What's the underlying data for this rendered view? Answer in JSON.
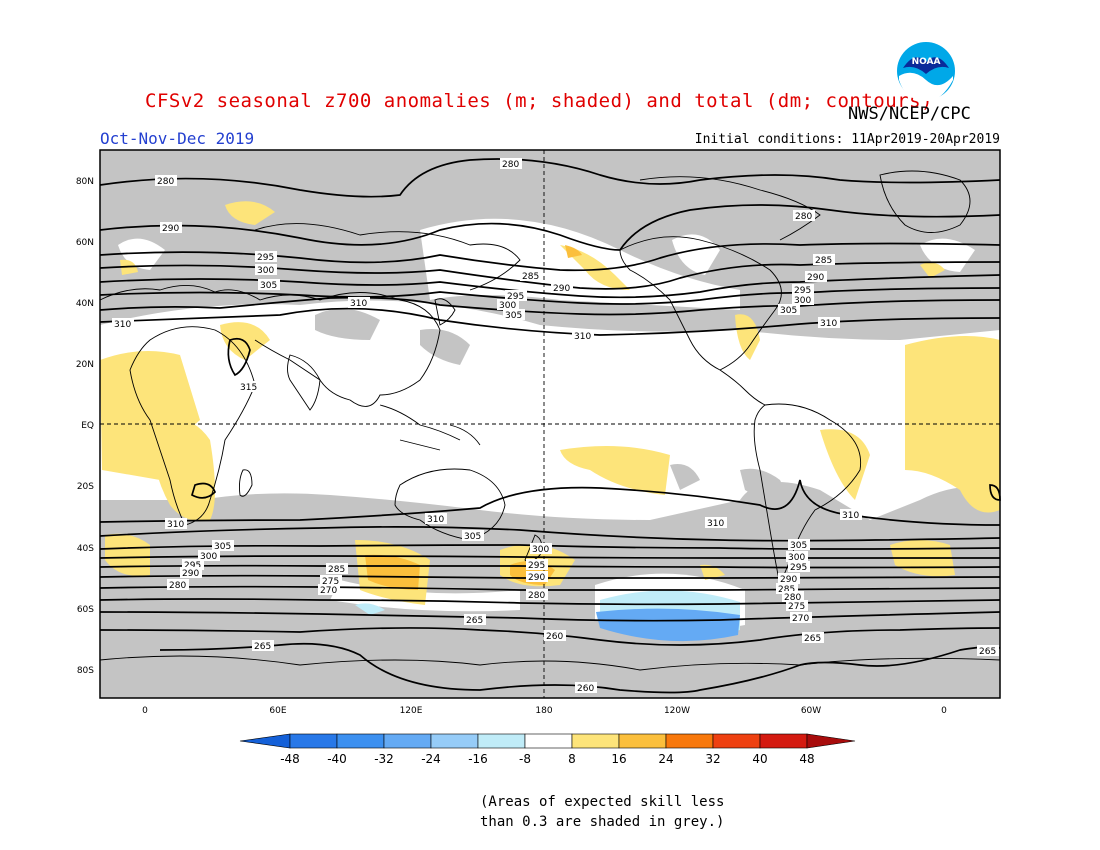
{
  "header": {
    "title": "CFSv2 seasonal z700 anomalies (m; shaded) and total (dm; contours)",
    "agency": "NWS/NCEP/CPC",
    "season": "Oct-Nov-Dec 2019",
    "initial_conditions": "Initial conditions: 11Apr2019-20Apr2019",
    "logo_text": "NOAA"
  },
  "axes": {
    "lat_labels": [
      "80N",
      "60N",
      "40N",
      "20N",
      "EQ",
      "20S",
      "40S",
      "60S",
      "80S"
    ],
    "lon_labels": [
      "0",
      "60E",
      "120E",
      "180",
      "120W",
      "60W",
      "0"
    ]
  },
  "contour_labels": [
    "280",
    "290",
    "295",
    "300",
    "305",
    "310",
    "315",
    "285",
    "275",
    "270",
    "265",
    "260"
  ],
  "colorbar": {
    "labels": [
      "-48",
      "-40",
      "-32",
      "-24",
      "-16",
      "-8",
      "8",
      "16",
      "24",
      "32",
      "40",
      "48"
    ],
    "colors": [
      "#1460d8",
      "#2878e8",
      "#3c90f0",
      "#64aaf4",
      "#96ccf8",
      "#c0ecf8",
      "#ffffff",
      "#fde47a",
      "#fbbf3c",
      "#f8780c",
      "#ee4010",
      "#d41a10",
      "#a80c0c"
    ]
  },
  "footnote": {
    "line1": "(Areas of expected skill less",
    "line2": "than 0.3 are shaded in grey.)"
  },
  "colors": {
    "title": "#e00000",
    "season": "#2440d0",
    "skill_grey": "#c4c4c4",
    "positive_light": "#fde47a",
    "positive_mid": "#fbbf3c",
    "negative_light": "#c0ecf8",
    "negative_mid": "#64aaf4"
  }
}
